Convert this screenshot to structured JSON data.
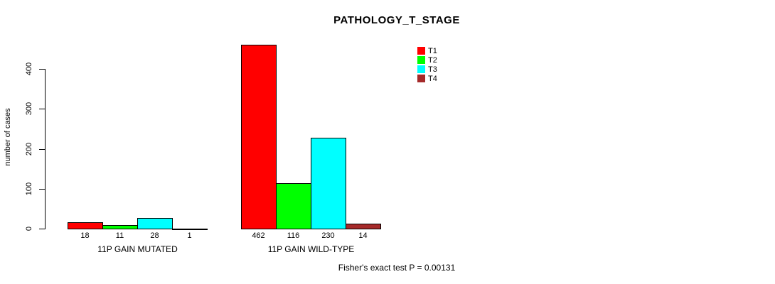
{
  "chart_data": {
    "type": "bar",
    "title": "PATHOLOGY_T_STAGE",
    "ylabel": "number of cases",
    "xlabel": "",
    "yticks": [
      0,
      100,
      200,
      300,
      400
    ],
    "ylim": [
      0,
      470
    ],
    "grid": false,
    "legend_position": "top-right",
    "categories": [
      "11P GAIN MUTATED",
      "11P GAIN WILD-TYPE"
    ],
    "series": [
      {
        "name": "T1",
        "color": "#FF0000",
        "values": [
          18,
          462
        ]
      },
      {
        "name": "T2",
        "color": "#00FF00",
        "values": [
          11,
          116
        ]
      },
      {
        "name": "T3",
        "color": "#00FFFF",
        "values": [
          28,
          230
        ]
      },
      {
        "name": "T4",
        "color": "#A52A2A",
        "values": [
          1,
          14
        ]
      }
    ],
    "annotation": "Fisher's exact test P = 0.00131"
  }
}
